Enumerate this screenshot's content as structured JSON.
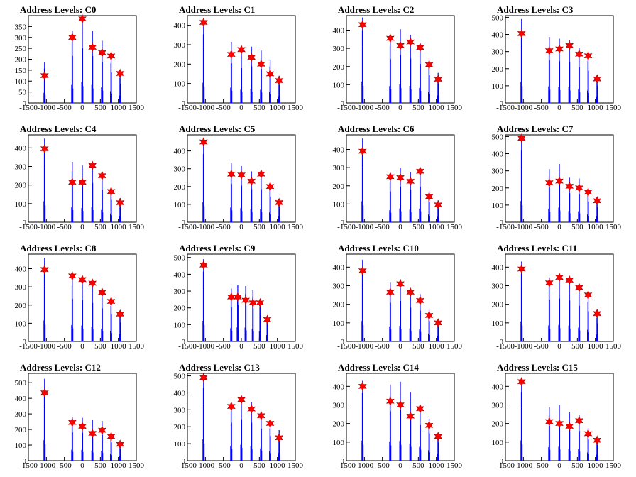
{
  "colors": {
    "bar": "#0000ff",
    "star_fill": "#ff0000",
    "star_stroke": "#b00000",
    "axis": "#000000"
  },
  "marker_icon": "red-star-marker",
  "x_ticks": [
    -1500,
    -1000,
    -500,
    0,
    500,
    1000,
    1500
  ],
  "x_tick_labels": [
    "-1500",
    "-1000",
    "-500",
    "0",
    "500",
    "1000",
    "1500"
  ],
  "chart_data": [
    {
      "type": "bar",
      "title": "Address Levels: C0",
      "xlim": [
        -1500,
        1500
      ],
      "ylim": [
        0,
        400
      ],
      "y_ticks": [
        0,
        50,
        100,
        150,
        200,
        250,
        300,
        350
      ],
      "y_tick_labels": [
        "0",
        "50",
        "100",
        "150",
        "200",
        "250",
        "300",
        "350"
      ],
      "peaks_x": [
        -1050,
        -280,
        0,
        280,
        550,
        800,
        1050
      ],
      "peaks_y": [
        125,
        300,
        385,
        255,
        230,
        215,
        135
      ],
      "bars_max_y": [
        185,
        330,
        385,
        330,
        285,
        215,
        135
      ]
    },
    {
      "type": "bar",
      "title": "Address Levels: C1",
      "xlim": [
        -1500,
        1500
      ],
      "ylim": [
        0,
        450
      ],
      "y_ticks": [
        0,
        100,
        200,
        300,
        400
      ],
      "y_tick_labels": [
        "0",
        "100",
        "200",
        "300",
        "400"
      ],
      "peaks_x": [
        -1050,
        -280,
        0,
        280,
        550,
        800,
        1050
      ],
      "peaks_y": [
        415,
        250,
        275,
        235,
        200,
        150,
        115
      ],
      "bars_max_y": [
        415,
        315,
        275,
        290,
        270,
        220,
        140
      ]
    },
    {
      "type": "bar",
      "title": "Address Levels: C2",
      "xlim": [
        -1500,
        1500
      ],
      "ylim": [
        0,
        480
      ],
      "y_ticks": [
        0,
        100,
        200,
        300,
        400
      ],
      "y_tick_labels": [
        "0",
        "100",
        "200",
        "300",
        "400"
      ],
      "peaks_x": [
        -1050,
        -280,
        0,
        280,
        550,
        800,
        1050
      ],
      "peaks_y": [
        430,
        355,
        315,
        335,
        305,
        210,
        130
      ],
      "bars_max_y": [
        470,
        370,
        405,
        375,
        330,
        235,
        165
      ]
    },
    {
      "type": "bar",
      "title": "Address Levels: C3",
      "xlim": [
        -1500,
        1500
      ],
      "ylim": [
        0,
        510
      ],
      "y_ticks": [
        0,
        100,
        200,
        300,
        400,
        500
      ],
      "y_tick_labels": [
        "0",
        "100",
        "200",
        "300",
        "400",
        "500"
      ],
      "peaks_x": [
        -1050,
        -280,
        0,
        280,
        550,
        800,
        1050
      ],
      "peaks_y": [
        405,
        305,
        315,
        335,
        285,
        275,
        140
      ],
      "bars_max_y": [
        490,
        385,
        375,
        365,
        320,
        290,
        155
      ]
    },
    {
      "type": "bar",
      "title": "Address Levels: C4",
      "xlim": [
        -1500,
        1500
      ],
      "ylim": [
        0,
        470
      ],
      "y_ticks": [
        0,
        100,
        200,
        300,
        400
      ],
      "y_tick_labels": [
        "0",
        "100",
        "200",
        "300",
        "400"
      ],
      "peaks_x": [
        -1050,
        -280,
        0,
        280,
        550,
        800,
        1050
      ],
      "peaks_y": [
        395,
        215,
        215,
        305,
        250,
        165,
        105
      ],
      "bars_max_y": [
        450,
        325,
        305,
        325,
        265,
        185,
        130
      ]
    },
    {
      "type": "bar",
      "title": "Address Levels: C5",
      "xlim": [
        -1500,
        1500
      ],
      "ylim": [
        0,
        490
      ],
      "y_ticks": [
        0,
        100,
        200,
        300,
        400
      ],
      "y_tick_labels": [
        "0",
        "100",
        "200",
        "300",
        "400"
      ],
      "peaks_x": [
        -1050,
        -280,
        0,
        280,
        550,
        800,
        1050
      ],
      "peaks_y": [
        450,
        270,
        265,
        230,
        270,
        200,
        110
      ],
      "bars_max_y": [
        450,
        330,
        315,
        285,
        285,
        220,
        130
      ]
    },
    {
      "type": "bar",
      "title": "Address Levels: C6",
      "xlim": [
        -1500,
        1500
      ],
      "ylim": [
        0,
        480
      ],
      "y_ticks": [
        0,
        100,
        200,
        300,
        400
      ],
      "y_tick_labels": [
        "0",
        "100",
        "200",
        "300",
        "400"
      ],
      "peaks_x": [
        -1050,
        -280,
        0,
        280,
        550,
        800,
        1050
      ],
      "peaks_y": [
        390,
        250,
        245,
        225,
        280,
        140,
        95
      ],
      "bars_max_y": [
        460,
        260,
        300,
        275,
        300,
        170,
        120
      ]
    },
    {
      "type": "bar",
      "title": "Address Levels: C7",
      "xlim": [
        -1500,
        1500
      ],
      "ylim": [
        0,
        510
      ],
      "y_ticks": [
        0,
        100,
        200,
        300,
        400,
        500
      ],
      "y_tick_labels": [
        "0",
        "100",
        "200",
        "300",
        "400",
        "500"
      ],
      "peaks_x": [
        -1050,
        -280,
        0,
        280,
        550,
        800,
        1050
      ],
      "peaks_y": [
        490,
        230,
        240,
        210,
        200,
        175,
        125
      ],
      "bars_max_y": [
        495,
        310,
        340,
        260,
        255,
        185,
        135
      ]
    },
    {
      "type": "bar",
      "title": "Address Levels: C8",
      "xlim": [
        -1500,
        1500
      ],
      "ylim": [
        0,
        480
      ],
      "y_ticks": [
        0,
        100,
        200,
        300,
        400
      ],
      "y_tick_labels": [
        "0",
        "100",
        "200",
        "300",
        "400"
      ],
      "peaks_x": [
        -1050,
        -280,
        0,
        280,
        550,
        800,
        1050
      ],
      "peaks_y": [
        395,
        360,
        340,
        320,
        270,
        220,
        150
      ],
      "bars_max_y": [
        460,
        360,
        350,
        325,
        280,
        230,
        160
      ]
    },
    {
      "type": "bar",
      "title": "Address Levels: C9",
      "xlim": [
        -1500,
        1500
      ],
      "ylim": [
        0,
        520
      ],
      "y_ticks": [
        0,
        100,
        200,
        300,
        400,
        500
      ],
      "y_tick_labels": [
        "0",
        "100",
        "200",
        "300",
        "400",
        "500"
      ],
      "peaks_x": [
        -1050,
        -280,
        -100,
        120,
        320,
        520,
        720
      ],
      "peaks_y": [
        455,
        265,
        265,
        245,
        230,
        230,
        130
      ],
      "bars_max_y": [
        490,
        315,
        335,
        330,
        305,
        240,
        150
      ]
    },
    {
      "type": "bar",
      "title": "Address Levels: C10",
      "xlim": [
        -1500,
        1500
      ],
      "ylim": [
        0,
        470
      ],
      "y_ticks": [
        0,
        100,
        200,
        300,
        400
      ],
      "y_tick_labels": [
        "0",
        "100",
        "200",
        "300",
        "400"
      ],
      "peaks_x": [
        -1050,
        -280,
        0,
        280,
        550,
        800,
        1050
      ],
      "peaks_y": [
        380,
        265,
        310,
        265,
        220,
        140,
        100
      ],
      "bars_max_y": [
        440,
        320,
        335,
        280,
        255,
        170,
        120
      ]
    },
    {
      "type": "bar",
      "title": "Address Levels: C11",
      "xlim": [
        -1500,
        1500
      ],
      "ylim": [
        0,
        470
      ],
      "y_ticks": [
        0,
        100,
        200,
        300,
        400
      ],
      "y_tick_labels": [
        "0",
        "100",
        "200",
        "300",
        "400"
      ],
      "peaks_x": [
        -1050,
        -280,
        0,
        280,
        550,
        800,
        1050
      ],
      "peaks_y": [
        390,
        315,
        345,
        330,
        290,
        250,
        150
      ],
      "bars_max_y": [
        430,
        345,
        355,
        340,
        295,
        250,
        150
      ]
    },
    {
      "type": "bar",
      "title": "Address Levels: C12",
      "xlim": [
        -1500,
        1500
      ],
      "ylim": [
        0,
        560
      ],
      "y_ticks": [
        0,
        100,
        200,
        300,
        400,
        500
      ],
      "y_tick_labels": [
        "0",
        "100",
        "200",
        "300",
        "400",
        "500"
      ],
      "peaks_x": [
        -1050,
        -280,
        0,
        280,
        550,
        800,
        1050
      ],
      "peaks_y": [
        435,
        245,
        220,
        175,
        195,
        155,
        105
      ],
      "bars_max_y": [
        525,
        280,
        275,
        260,
        255,
        180,
        115
      ]
    },
    {
      "type": "bar",
      "title": "Address Levels: C13",
      "xlim": [
        -1500,
        1500
      ],
      "ylim": [
        0,
        515
      ],
      "y_ticks": [
        0,
        100,
        200,
        300,
        400,
        500
      ],
      "y_tick_labels": [
        "0",
        "100",
        "200",
        "300",
        "400",
        "500"
      ],
      "peaks_x": [
        -1050,
        -280,
        0,
        280,
        550,
        800,
        1050
      ],
      "peaks_y": [
        490,
        320,
        360,
        305,
        265,
        220,
        135
      ],
      "bars_max_y": [
        505,
        345,
        375,
        345,
        290,
        225,
        180
      ]
    },
    {
      "type": "bar",
      "title": "Address Levels: C14",
      "xlim": [
        -1500,
        1500
      ],
      "ylim": [
        0,
        470
      ],
      "y_ticks": [
        0,
        100,
        200,
        300,
        400
      ],
      "y_tick_labels": [
        "0",
        "100",
        "200",
        "300",
        "400"
      ],
      "peaks_x": [
        -1050,
        -280,
        0,
        280,
        550,
        800,
        1050
      ],
      "peaks_y": [
        400,
        320,
        300,
        240,
        280,
        190,
        130
      ],
      "bars_max_y": [
        430,
        410,
        425,
        370,
        295,
        225,
        150
      ]
    },
    {
      "type": "bar",
      "title": "Address Levels: C15",
      "xlim": [
        -1500,
        1500
      ],
      "ylim": [
        0,
        470
      ],
      "y_ticks": [
        0,
        100,
        200,
        300,
        400
      ],
      "y_tick_labels": [
        "0",
        "100",
        "200",
        "300",
        "400"
      ],
      "peaks_x": [
        -1050,
        -280,
        0,
        280,
        550,
        800,
        1050
      ],
      "peaks_y": [
        425,
        210,
        200,
        185,
        215,
        145,
        110
      ],
      "bars_max_y": [
        435,
        290,
        300,
        260,
        245,
        175,
        130
      ]
    }
  ]
}
